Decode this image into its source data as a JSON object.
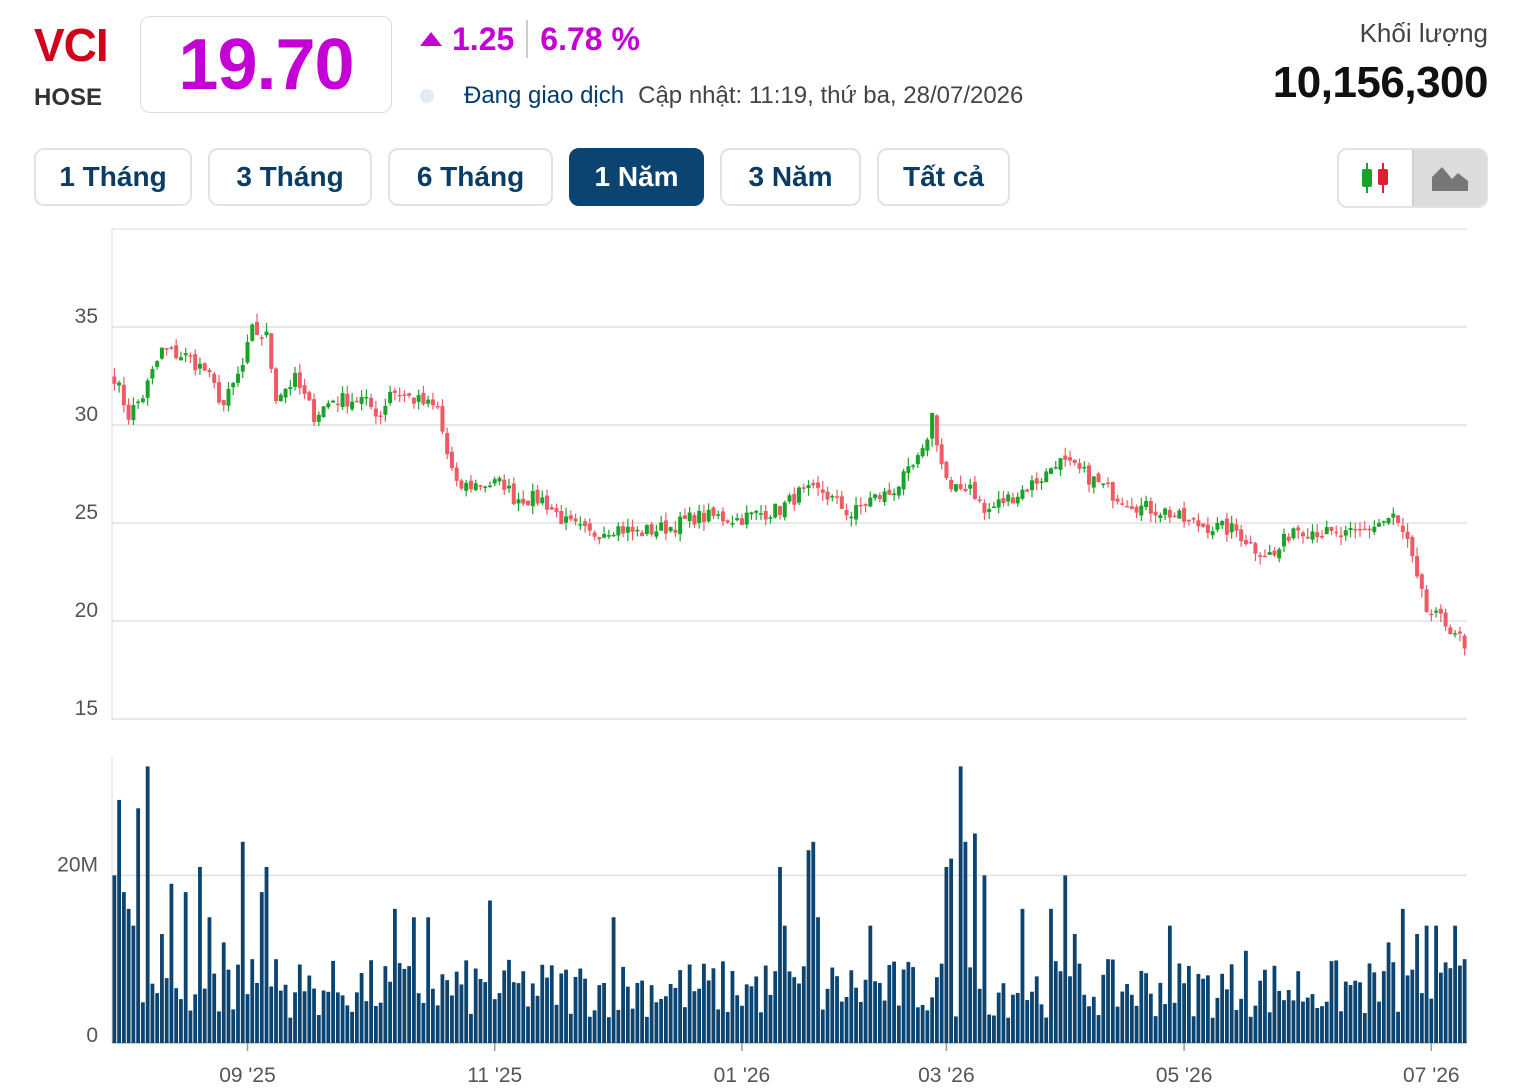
{
  "header": {
    "ticker": "VCI",
    "exchange": "HOSE",
    "price": "19.70",
    "change": "1.25",
    "change_pct": "6.78 %",
    "status": "Đang giao dịch",
    "updated": "Cập nhật: 11:19, thứ ba, 28/07/2026",
    "volume_label": "Khối lượng",
    "volume_value": "10,156,300"
  },
  "tabs": [
    {
      "label": "1 Tháng",
      "active": false
    },
    {
      "label": "3 Tháng",
      "active": false
    },
    {
      "label": "6 Tháng",
      "active": false
    },
    {
      "label": "1 Năm",
      "active": true
    },
    {
      "label": "3 Năm",
      "active": false
    },
    {
      "label": "Tất cả",
      "active": false
    }
  ],
  "chart_toggle": {
    "options": [
      "candlestick-icon",
      "area-chart-icon"
    ],
    "selected": "area-chart-icon"
  },
  "colors": {
    "up": "#1aa329",
    "down": "#f05a64",
    "volume": "#0b4470",
    "accent": "#c400d6",
    "ticker": "#d0021b"
  },
  "chart_data": {
    "type": "candlestick",
    "price_axis": {
      "ticks": [
        15,
        20,
        25,
        30,
        35
      ],
      "ylim": [
        15,
        40
      ]
    },
    "volume_axis": {
      "ticks": [
        "0",
        "20M"
      ],
      "tick_values": [
        0,
        20000000
      ],
      "ylim": [
        0,
        34000000
      ]
    },
    "x_ticks": [
      {
        "label": "09 '25",
        "index": 28
      },
      {
        "label": "11 '25",
        "index": 80
      },
      {
        "label": "01 '26",
        "index": 132
      },
      {
        "label": "03 '26",
        "index": 175
      },
      {
        "label": "05 '26",
        "index": 225
      },
      {
        "label": "07 '26",
        "index": 277
      }
    ],
    "grid": true,
    "price_keyframes": [
      [
        0,
        32.5
      ],
      [
        3,
        30.5
      ],
      [
        6,
        31.5
      ],
      [
        10,
        33.8
      ],
      [
        15,
        33.5
      ],
      [
        19,
        32.8
      ],
      [
        23,
        31.0
      ],
      [
        27,
        33.0
      ],
      [
        29,
        34.8
      ],
      [
        32,
        34.5
      ],
      [
        34,
        31.5
      ],
      [
        38,
        32.3
      ],
      [
        42,
        30.5
      ],
      [
        46,
        31.3
      ],
      [
        52,
        31.3
      ],
      [
        56,
        30.5
      ],
      [
        58,
        31.8
      ],
      [
        63,
        31.3
      ],
      [
        68,
        30.8
      ],
      [
        70,
        28.5
      ],
      [
        72,
        26.8
      ],
      [
        77,
        27.0
      ],
      [
        82,
        27.0
      ],
      [
        84,
        26.3
      ],
      [
        90,
        26.2
      ],
      [
        95,
        25.0
      ],
      [
        100,
        24.4
      ],
      [
        105,
        24.8
      ],
      [
        110,
        24.5
      ],
      [
        117,
        24.8
      ],
      [
        122,
        25.3
      ],
      [
        127,
        25.3
      ],
      [
        131,
        25.2
      ],
      [
        136,
        25.5
      ],
      [
        140,
        25.7
      ],
      [
        144,
        26.5
      ],
      [
        149,
        26.6
      ],
      [
        155,
        25.4
      ],
      [
        159,
        26.2
      ],
      [
        163,
        26.5
      ],
      [
        167,
        27.5
      ],
      [
        170,
        28.5
      ],
      [
        172,
        30.5
      ],
      [
        174,
        28.0
      ],
      [
        176,
        26.5
      ],
      [
        180,
        27.0
      ],
      [
        183,
        25.5
      ],
      [
        186,
        26.0
      ],
      [
        190,
        26.5
      ],
      [
        193,
        27.0
      ],
      [
        196,
        27.5
      ],
      [
        198,
        28.2
      ],
      [
        204,
        27.5
      ],
      [
        210,
        26.5
      ],
      [
        216,
        25.8
      ],
      [
        221,
        25.6
      ],
      [
        226,
        25.0
      ],
      [
        231,
        24.8
      ],
      [
        236,
        24.6
      ],
      [
        240,
        23.7
      ],
      [
        244,
        23.3
      ],
      [
        248,
        24.8
      ],
      [
        253,
        24.6
      ],
      [
        257,
        24.3
      ],
      [
        261,
        24.4
      ],
      [
        266,
        25.0
      ],
      [
        269,
        25.3
      ],
      [
        272,
        24.0
      ],
      [
        274,
        22.0
      ],
      [
        276,
        20.5
      ],
      [
        279,
        20.0
      ],
      [
        282,
        19.5
      ],
      [
        284,
        18.6
      ]
    ],
    "volume_spikes": [
      [
        0,
        20
      ],
      [
        1,
        29
      ],
      [
        2,
        18
      ],
      [
        3,
        16
      ],
      [
        4,
        14
      ],
      [
        5,
        28
      ],
      [
        7,
        33
      ],
      [
        10,
        13
      ],
      [
        12,
        19
      ],
      [
        15,
        18
      ],
      [
        18,
        21
      ],
      [
        20,
        15
      ],
      [
        23,
        12
      ],
      [
        27,
        24
      ],
      [
        29,
        10
      ],
      [
        31,
        18
      ],
      [
        32,
        21
      ],
      [
        34,
        10
      ],
      [
        59,
        16
      ],
      [
        63,
        15
      ],
      [
        66,
        15
      ],
      [
        79,
        17
      ],
      [
        105,
        15
      ],
      [
        140,
        21
      ],
      [
        141,
        14
      ],
      [
        146,
        23
      ],
      [
        147,
        24
      ],
      [
        148,
        15
      ],
      [
        159,
        14
      ],
      [
        175,
        21
      ],
      [
        176,
        22
      ],
      [
        178,
        33
      ],
      [
        179,
        24
      ],
      [
        181,
        25
      ],
      [
        183,
        20
      ],
      [
        191,
        16
      ],
      [
        197,
        16
      ],
      [
        200,
        20
      ],
      [
        202,
        13
      ],
      [
        222,
        14
      ],
      [
        238,
        11
      ],
      [
        268,
        12
      ],
      [
        271,
        16
      ],
      [
        274,
        13
      ],
      [
        276,
        14
      ],
      [
        278,
        14
      ],
      [
        282,
        14
      ],
      [
        284,
        10
      ]
    ]
  }
}
